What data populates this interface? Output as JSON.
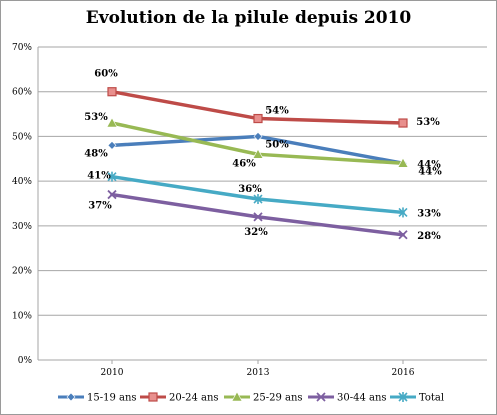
{
  "chart_data": {
    "type": "line",
    "title": "Evolution de la pilule depuis 2010",
    "categories": [
      "2010",
      "2013",
      "2016"
    ],
    "ylim": [
      0,
      70
    ],
    "yticks": [
      0,
      10,
      20,
      30,
      40,
      50,
      60,
      70
    ],
    "ytick_suffix": "%",
    "grid": true,
    "legend_position": "bottom",
    "series": [
      {
        "name": "15-19 ans",
        "values": [
          48,
          50,
          44
        ],
        "labels": [
          "48%",
          "50%",
          "44%"
        ],
        "color": "#4a7ebb",
        "marker": "diamond"
      },
      {
        "name": "20-24 ans",
        "values": [
          60,
          54,
          53
        ],
        "labels": [
          "60%",
          "54%",
          "53%"
        ],
        "color": "#be4b48",
        "marker": "square"
      },
      {
        "name": "25-29 ans",
        "values": [
          53,
          46,
          44
        ],
        "labels": [
          "53%",
          "46%",
          "44%"
        ],
        "color": "#98b954",
        "marker": "triangle"
      },
      {
        "name": "30-44 ans",
        "values": [
          37,
          32,
          28
        ],
        "labels": [
          "37%",
          "32%",
          "28%"
        ],
        "color": "#7d5fa0",
        "marker": "x"
      },
      {
        "name": "Total",
        "values": [
          41,
          36,
          33
        ],
        "labels": [
          "41%",
          "36%",
          "33%"
        ],
        "color": "#46aac5",
        "marker": "star"
      }
    ]
  }
}
